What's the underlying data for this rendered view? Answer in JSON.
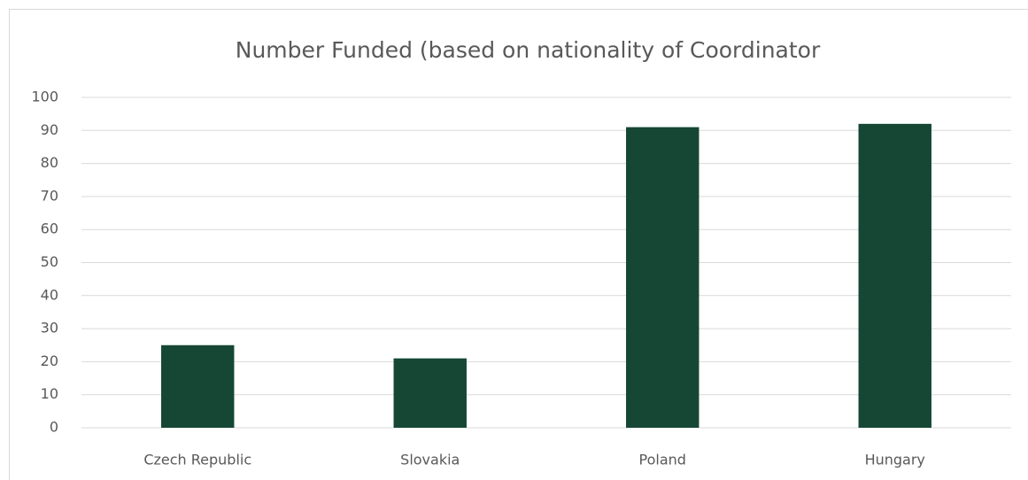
{
  "chart_data": {
    "type": "bar",
    "title": "Number Funded (based on nationality of Coordinator",
    "categories": [
      "Czech Republic",
      "Slovakia",
      "Poland",
      "Hungary"
    ],
    "values": [
      25,
      21,
      91,
      92
    ],
    "color": "#154734",
    "ylim": [
      0,
      100
    ],
    "yticks": [
      0,
      10,
      20,
      30,
      40,
      50,
      60,
      70,
      80,
      90,
      100
    ],
    "grid": true
  }
}
